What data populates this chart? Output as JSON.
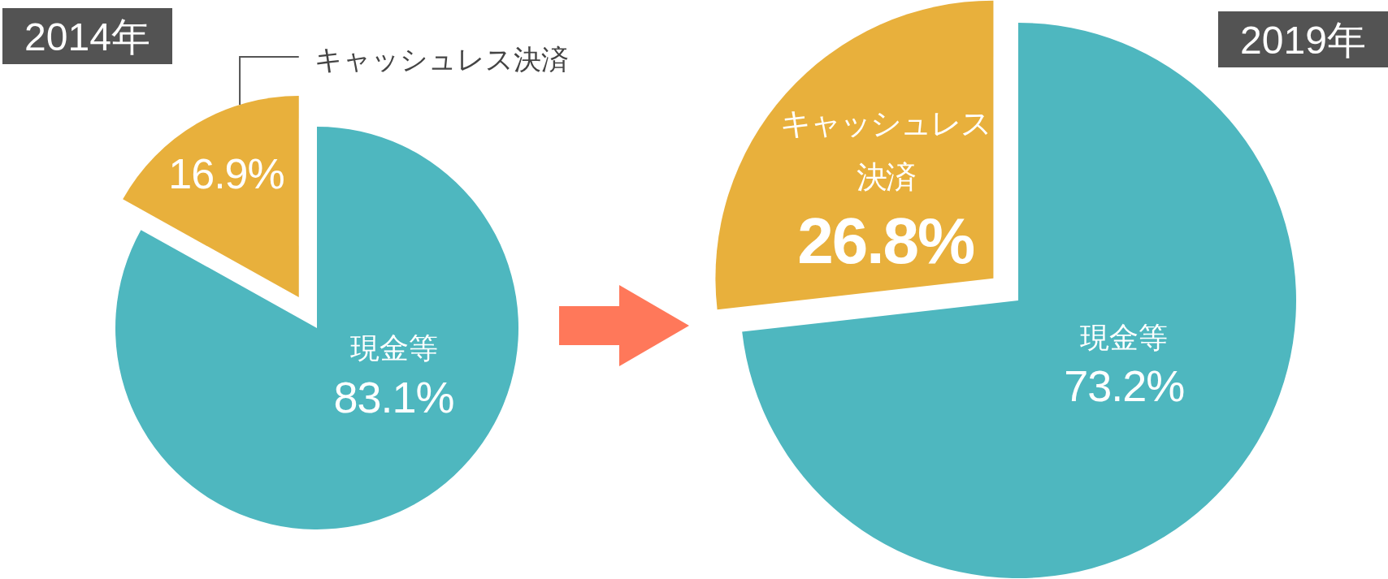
{
  "chart_data": [
    {
      "type": "pie",
      "title": "2014年",
      "categories": [
        "現金等",
        "キャッシュレス決済"
      ],
      "values": [
        83.1,
        16.9
      ],
      "colors": [
        "#4eb7bf",
        "#e8b03c"
      ],
      "value_labels": [
        "83.1%",
        "16.9%"
      ]
    },
    {
      "type": "pie",
      "title": "2019年",
      "categories": [
        "現金等",
        "キャッシュレス決済"
      ],
      "values": [
        73.2,
        26.8
      ],
      "colors": [
        "#4eb7bf",
        "#e8b03c"
      ],
      "value_labels": [
        "73.2%",
        "26.8%"
      ]
    }
  ]
}
